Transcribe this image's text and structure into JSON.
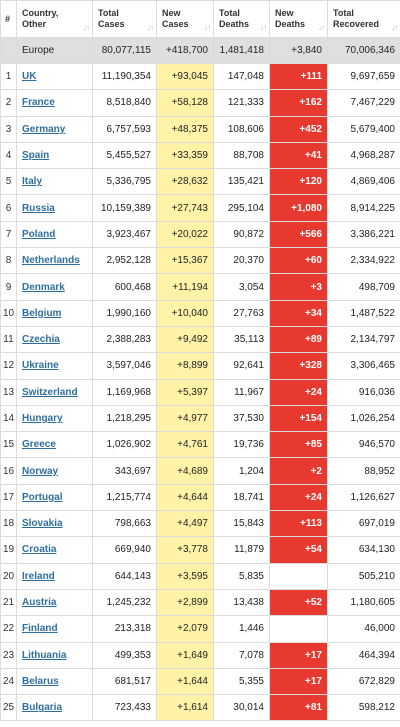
{
  "headers": {
    "idx": "#",
    "country": "Country, Other",
    "total_cases": "Total Cases",
    "new_cases": "New Cases",
    "total_deaths": "Total Deaths",
    "new_deaths": "New Deaths",
    "total_recovered": "Total Recovered"
  },
  "colors": {
    "new_cases_bg": "#fff3a8",
    "new_deaths_bg": "#e7392f",
    "link": "#2f6f9f",
    "total_row_bg": "#dfdfdf"
  },
  "total": {
    "country": "Europe",
    "total_cases": "80,077,115",
    "new_cases": "+418,700",
    "total_deaths": "1,481,418",
    "new_deaths": "+3,840",
    "total_recovered": "70,006,346"
  },
  "rows": [
    {
      "idx": "1",
      "country": "UK",
      "total_cases": "11,190,354",
      "new_cases": "+93,045",
      "total_deaths": "147,048",
      "new_deaths": "+111",
      "total_recovered": "9,697,659"
    },
    {
      "idx": "2",
      "country": "France",
      "total_cases": "8,518,840",
      "new_cases": "+58,128",
      "total_deaths": "121,333",
      "new_deaths": "+162",
      "total_recovered": "7,467,229"
    },
    {
      "idx": "3",
      "country": "Germany",
      "total_cases": "6,757,593",
      "new_cases": "+48,375",
      "total_deaths": "108,606",
      "new_deaths": "+452",
      "total_recovered": "5,679,400"
    },
    {
      "idx": "4",
      "country": "Spain",
      "total_cases": "5,455,527",
      "new_cases": "+33,359",
      "total_deaths": "88,708",
      "new_deaths": "+41",
      "total_recovered": "4,968,287"
    },
    {
      "idx": "5",
      "country": "Italy",
      "total_cases": "5,336,795",
      "new_cases": "+28,632",
      "total_deaths": "135,421",
      "new_deaths": "+120",
      "total_recovered": "4,869,406"
    },
    {
      "idx": "6",
      "country": "Russia",
      "total_cases": "10,159,389",
      "new_cases": "+27,743",
      "total_deaths": "295,104",
      "new_deaths": "+1,080",
      "total_recovered": "8,914,225"
    },
    {
      "idx": "7",
      "country": "Poland",
      "total_cases": "3,923,467",
      "new_cases": "+20,022",
      "total_deaths": "90,872",
      "new_deaths": "+566",
      "total_recovered": "3,386,221"
    },
    {
      "idx": "8",
      "country": "Netherlands",
      "total_cases": "2,952,128",
      "new_cases": "+15,367",
      "total_deaths": "20,370",
      "new_deaths": "+60",
      "total_recovered": "2,334,922"
    },
    {
      "idx": "9",
      "country": "Denmark",
      "total_cases": "600,468",
      "new_cases": "+11,194",
      "total_deaths": "3,054",
      "new_deaths": "+3",
      "total_recovered": "498,709"
    },
    {
      "idx": "10",
      "country": "Belgium",
      "total_cases": "1,990,160",
      "new_cases": "+10,040",
      "total_deaths": "27,763",
      "new_deaths": "+34",
      "total_recovered": "1,487,522"
    },
    {
      "idx": "11",
      "country": "Czechia",
      "total_cases": "2,388,283",
      "new_cases": "+9,492",
      "total_deaths": "35,113",
      "new_deaths": "+89",
      "total_recovered": "2,134,797"
    },
    {
      "idx": "12",
      "country": "Ukraine",
      "total_cases": "3,597,046",
      "new_cases": "+8,899",
      "total_deaths": "92,641",
      "new_deaths": "+328",
      "total_recovered": "3,306,465"
    },
    {
      "idx": "13",
      "country": "Switzerland",
      "total_cases": "1,169,968",
      "new_cases": "+5,397",
      "total_deaths": "11,967",
      "new_deaths": "+24",
      "total_recovered": "916,036"
    },
    {
      "idx": "14",
      "country": "Hungary",
      "total_cases": "1,218,295",
      "new_cases": "+4,977",
      "total_deaths": "37,530",
      "new_deaths": "+154",
      "total_recovered": "1,026,254"
    },
    {
      "idx": "15",
      "country": "Greece",
      "total_cases": "1,026,902",
      "new_cases": "+4,761",
      "total_deaths": "19,736",
      "new_deaths": "+85",
      "total_recovered": "946,570"
    },
    {
      "idx": "16",
      "country": "Norway",
      "total_cases": "343,697",
      "new_cases": "+4,689",
      "total_deaths": "1,204",
      "new_deaths": "+2",
      "total_recovered": "88,952"
    },
    {
      "idx": "17",
      "country": "Portugal",
      "total_cases": "1,215,774",
      "new_cases": "+4,644",
      "total_deaths": "18,741",
      "new_deaths": "+24",
      "total_recovered": "1,126,627"
    },
    {
      "idx": "18",
      "country": "Slovakia",
      "total_cases": "798,663",
      "new_cases": "+4,497",
      "total_deaths": "15,843",
      "new_deaths": "+113",
      "total_recovered": "697,019"
    },
    {
      "idx": "19",
      "country": "Croatia",
      "total_cases": "669,940",
      "new_cases": "+3,778",
      "total_deaths": "11,879",
      "new_deaths": "+54",
      "total_recovered": "634,130"
    },
    {
      "idx": "20",
      "country": "Ireland",
      "total_cases": "644,143",
      "new_cases": "+3,595",
      "total_deaths": "5,835",
      "new_deaths": "",
      "total_recovered": "505,210"
    },
    {
      "idx": "21",
      "country": "Austria",
      "total_cases": "1,245,232",
      "new_cases": "+2,899",
      "total_deaths": "13,438",
      "new_deaths": "+52",
      "total_recovered": "1,180,605"
    },
    {
      "idx": "22",
      "country": "Finland",
      "total_cases": "213,318",
      "new_cases": "+2,079",
      "total_deaths": "1,446",
      "new_deaths": "",
      "total_recovered": "46,000"
    },
    {
      "idx": "23",
      "country": "Lithuania",
      "total_cases": "499,353",
      "new_cases": "+1,649",
      "total_deaths": "7,078",
      "new_deaths": "+17",
      "total_recovered": "464,394"
    },
    {
      "idx": "24",
      "country": "Belarus",
      "total_cases": "681,517",
      "new_cases": "+1,644",
      "total_deaths": "5,355",
      "new_deaths": "+17",
      "total_recovered": "672,829"
    },
    {
      "idx": "25",
      "country": "Bulgaria",
      "total_cases": "723,433",
      "new_cases": "+1,614",
      "total_deaths": "30,014",
      "new_deaths": "+81",
      "total_recovered": "598,212"
    }
  ]
}
